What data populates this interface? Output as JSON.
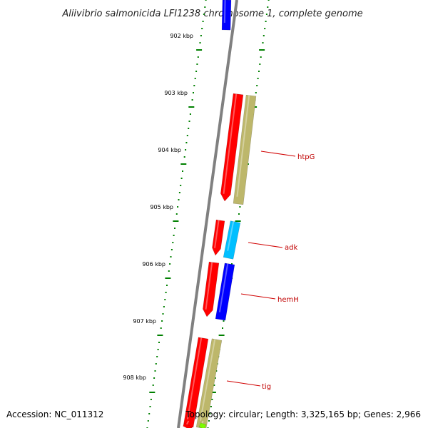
{
  "title": "Aliivibrio salmonicida LFI1238 chromosome 1, complete genome",
  "footer": {
    "accession": "Accession: NC_011312",
    "topology": "Topology: circular; Length: 3,325,165 bp; Genes: 2,966"
  },
  "colors": {
    "backbone": "#808080",
    "tick": "#008000",
    "label_line": "#d00000",
    "label_text": "#c00000",
    "gene_red": "#ff0000",
    "gene_blue": "#0000ff",
    "gene_cyan": "#00bfff",
    "gene_khaki": "#bdb76b",
    "gene_green": "#7cfc00"
  },
  "ticks": [
    {
      "label": "902 kbp"
    },
    {
      "label": "903 kbp"
    },
    {
      "label": "904 kbp"
    },
    {
      "label": "905 kbp"
    },
    {
      "label": "906 kbp"
    },
    {
      "label": "907 kbp"
    },
    {
      "label": "908 kbp"
    }
  ],
  "gene_labels": [
    {
      "name": "htpG"
    },
    {
      "name": "adk"
    },
    {
      "name": "hemH"
    },
    {
      "name": "tig"
    }
  ]
}
